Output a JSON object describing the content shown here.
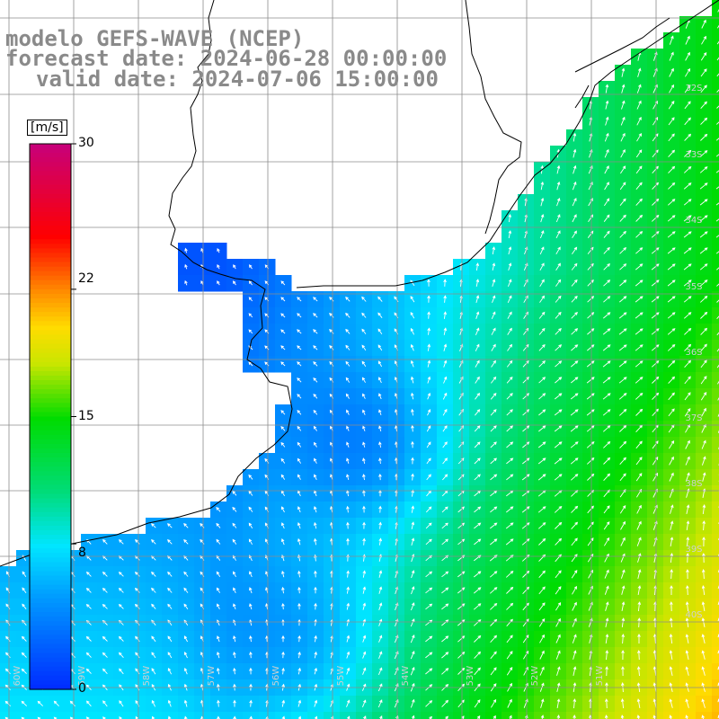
{
  "title": {
    "line1": "modelo GEFS-WAVE (NCEP)",
    "line2": "forecast date: 2024-06-28 00:00:00",
    "line3": "valid date: 2024-07-06 15:00:00"
  },
  "colorbar": {
    "unit": "[m/s]",
    "ticks": [
      "30",
      "22",
      "15",
      "8",
      "0"
    ],
    "tick_values": [
      30,
      22,
      15,
      8,
      0
    ],
    "range": [
      0,
      30
    ]
  },
  "lat_labels": [
    "32S",
    "33S",
    "34S",
    "35S",
    "36S",
    "37S",
    "38S",
    "39S",
    "40S"
  ],
  "lon_labels": [
    "60W",
    "59W",
    "58W",
    "57W",
    "56W",
    "55W",
    "54W",
    "53W",
    "52W",
    "51W"
  ],
  "colors": {
    "land": "#ffffff",
    "grid": "#8c8c8c",
    "coast": "#000000",
    "arrow": "#ffffff",
    "title": "#8a8a8a"
  }
}
